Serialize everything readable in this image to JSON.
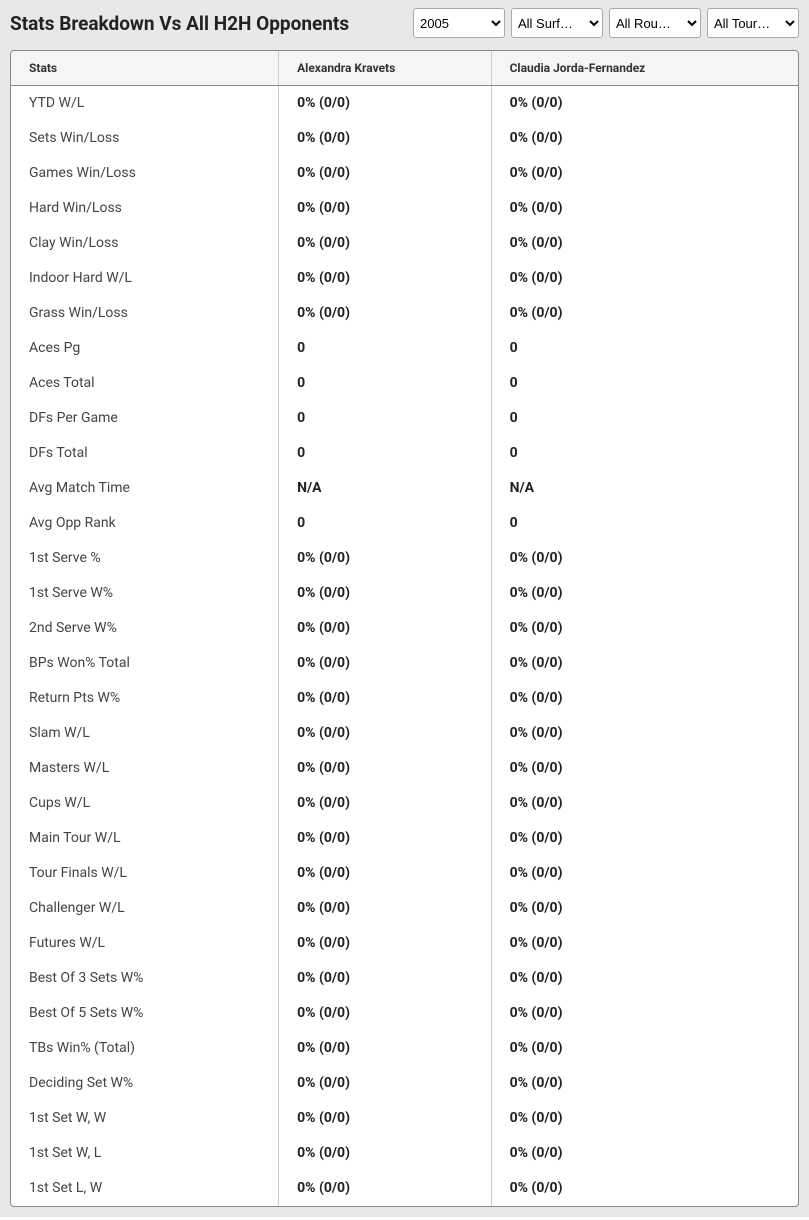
{
  "header": {
    "title": "Stats Breakdown Vs All H2H Opponents",
    "year_select": "2005",
    "surface_select": "All Surf…",
    "round_select": "All Rou…",
    "tour_select": "All Tour…"
  },
  "table": {
    "columns": [
      "Stats",
      "Alexandra Kravets",
      "Claudia Jorda-Fernandez"
    ],
    "rows": [
      {
        "stat": "YTD W/L",
        "p1": "0% (0/0)",
        "p2": "0% (0/0)"
      },
      {
        "stat": "Sets Win/Loss",
        "p1": "0% (0/0)",
        "p2": "0% (0/0)"
      },
      {
        "stat": "Games Win/Loss",
        "p1": "0% (0/0)",
        "p2": "0% (0/0)"
      },
      {
        "stat": "Hard Win/Loss",
        "p1": "0% (0/0)",
        "p2": "0% (0/0)"
      },
      {
        "stat": "Clay Win/Loss",
        "p1": "0% (0/0)",
        "p2": "0% (0/0)"
      },
      {
        "stat": "Indoor Hard W/L",
        "p1": "0% (0/0)",
        "p2": "0% (0/0)"
      },
      {
        "stat": "Grass Win/Loss",
        "p1": "0% (0/0)",
        "p2": "0% (0/0)"
      },
      {
        "stat": "Aces Pg",
        "p1": "0",
        "p2": "0"
      },
      {
        "stat": "Aces Total",
        "p1": "0",
        "p2": "0"
      },
      {
        "stat": "DFs Per Game",
        "p1": "0",
        "p2": "0"
      },
      {
        "stat": "DFs Total",
        "p1": "0",
        "p2": "0"
      },
      {
        "stat": "Avg Match Time",
        "p1": "N/A",
        "p2": "N/A"
      },
      {
        "stat": "Avg Opp Rank",
        "p1": "0",
        "p2": "0"
      },
      {
        "stat": "1st Serve %",
        "p1": "0% (0/0)",
        "p2": "0% (0/0)"
      },
      {
        "stat": "1st Serve W%",
        "p1": "0% (0/0)",
        "p2": "0% (0/0)"
      },
      {
        "stat": "2nd Serve W%",
        "p1": "0% (0/0)",
        "p2": "0% (0/0)"
      },
      {
        "stat": "BPs Won% Total",
        "p1": "0% (0/0)",
        "p2": "0% (0/0)"
      },
      {
        "stat": "Return Pts W%",
        "p1": "0% (0/0)",
        "p2": "0% (0/0)"
      },
      {
        "stat": "Slam W/L",
        "p1": "0% (0/0)",
        "p2": "0% (0/0)"
      },
      {
        "stat": "Masters W/L",
        "p1": "0% (0/0)",
        "p2": "0% (0/0)"
      },
      {
        "stat": "Cups W/L",
        "p1": "0% (0/0)",
        "p2": "0% (0/0)"
      },
      {
        "stat": "Main Tour W/L",
        "p1": "0% (0/0)",
        "p2": "0% (0/0)"
      },
      {
        "stat": "Tour Finals W/L",
        "p1": "0% (0/0)",
        "p2": "0% (0/0)"
      },
      {
        "stat": "Challenger W/L",
        "p1": "0% (0/0)",
        "p2": "0% (0/0)"
      },
      {
        "stat": "Futures W/L",
        "p1": "0% (0/0)",
        "p2": "0% (0/0)"
      },
      {
        "stat": "Best Of 3 Sets W%",
        "p1": "0% (0/0)",
        "p2": "0% (0/0)"
      },
      {
        "stat": "Best Of 5 Sets W%",
        "p1": "0% (0/0)",
        "p2": "0% (0/0)"
      },
      {
        "stat": "TBs Win% (Total)",
        "p1": "0% (0/0)",
        "p2": "0% (0/0)"
      },
      {
        "stat": "Deciding Set W%",
        "p1": "0% (0/0)",
        "p2": "0% (0/0)"
      },
      {
        "stat": "1st Set W, W",
        "p1": "0% (0/0)",
        "p2": "0% (0/0)"
      },
      {
        "stat": "1st Set W, L",
        "p1": "0% (0/0)",
        "p2": "0% (0/0)"
      },
      {
        "stat": "1st Set L, W",
        "p1": "0% (0/0)",
        "p2": "0% (0/0)"
      }
    ]
  }
}
